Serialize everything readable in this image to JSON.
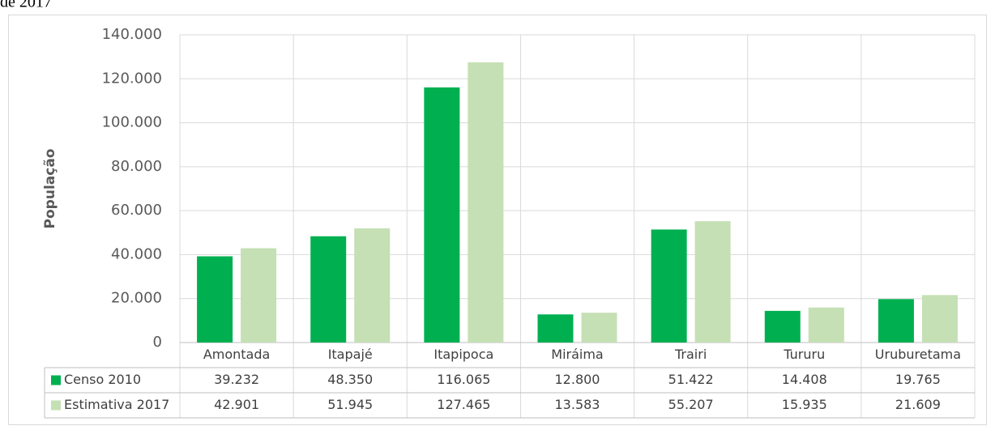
{
  "chart_data": {
    "type": "bar",
    "title": "de 2017",
    "ylabel": "População",
    "categories": [
      "Amontada",
      "Itapajé",
      "Itapipoca",
      "Miráima",
      "Trairi",
      "Tururu",
      "Uruburetama"
    ],
    "series": [
      {
        "name": "Censo 2010",
        "color": "#00b050",
        "values": [
          39232,
          48350,
          116065,
          12800,
          51422,
          14408,
          19765
        ],
        "value_labels": [
          "39.232",
          "48.350",
          "116.065",
          "12.800",
          "51.422",
          "14.408",
          "19.765"
        ]
      },
      {
        "name": "Estimativa 2017",
        "color": "#c5e0b4",
        "values": [
          42901,
          51945,
          127465,
          13583,
          55207,
          15935,
          21609
        ],
        "value_labels": [
          "42.901",
          "51.945",
          "127.465",
          "13.583",
          "55.207",
          "15.935",
          "21.609"
        ]
      }
    ],
    "ylim": [
      0,
      140000
    ],
    "yticks": [
      0,
      {
        "value": 20000,
        "label": "20.000"
      },
      {
        "value": 40000,
        "label": "40.000"
      },
      {
        "value": 60000,
        "label": "60.000"
      },
      {
        "value": 80000,
        "label": "80.000"
      },
      {
        "value": 100000,
        "label": "100.000"
      },
      {
        "value": 120000,
        "label": "120.000"
      },
      {
        "value": 140000,
        "label": "140.000"
      }
    ],
    "grid": true
  }
}
